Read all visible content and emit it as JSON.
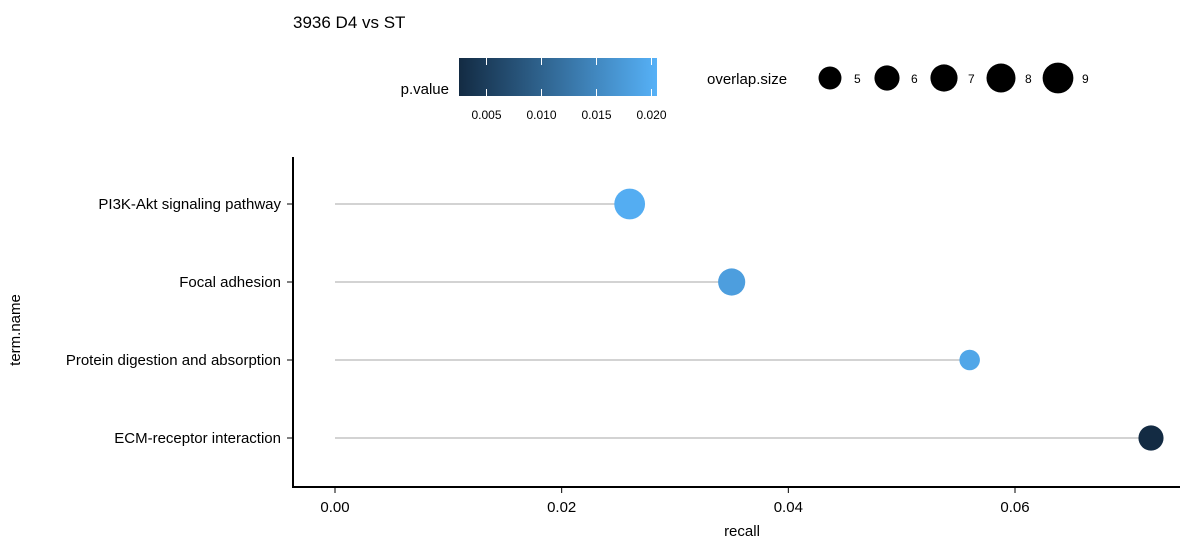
{
  "chart_data": {
    "type": "lollipop",
    "title": "3936 D4 vs ST",
    "xlabel": "recall",
    "ylabel": "term.name",
    "xlim": [
      -0.0035,
      0.075
    ],
    "x_ticks": [
      0.0,
      0.02,
      0.04,
      0.06
    ],
    "x_tick_labels": [
      "0.00",
      "0.02",
      "0.04",
      "0.06"
    ],
    "grid": false,
    "categories": [
      "PI3K-Akt signaling pathway",
      "Focal adhesion",
      "Protein digestion and absorption",
      "ECM-receptor interaction"
    ],
    "recall": [
      0.026,
      0.035,
      0.056,
      0.072
    ],
    "p_value": [
      0.02,
      0.018,
      0.019,
      0.002
    ],
    "overlap_size": [
      9,
      7,
      4,
      6
    ],
    "segment_color": "#d3d3d3",
    "color_legend": {
      "title": "p.value",
      "low_color": "#132b43",
      "high_color": "#56b1f7",
      "range": [
        0.0025,
        0.0205
      ],
      "ticks": [
        0.005,
        0.01,
        0.015,
        0.02
      ],
      "tick_labels": [
        "0.005",
        "0.010",
        "0.015",
        "0.020"
      ],
      "placement": "top"
    },
    "size_legend": {
      "title": "overlap.size",
      "values": [
        5,
        6,
        7,
        8,
        9
      ],
      "labels": [
        "5",
        "6",
        "7",
        "8",
        "9"
      ],
      "placement": "top"
    }
  }
}
